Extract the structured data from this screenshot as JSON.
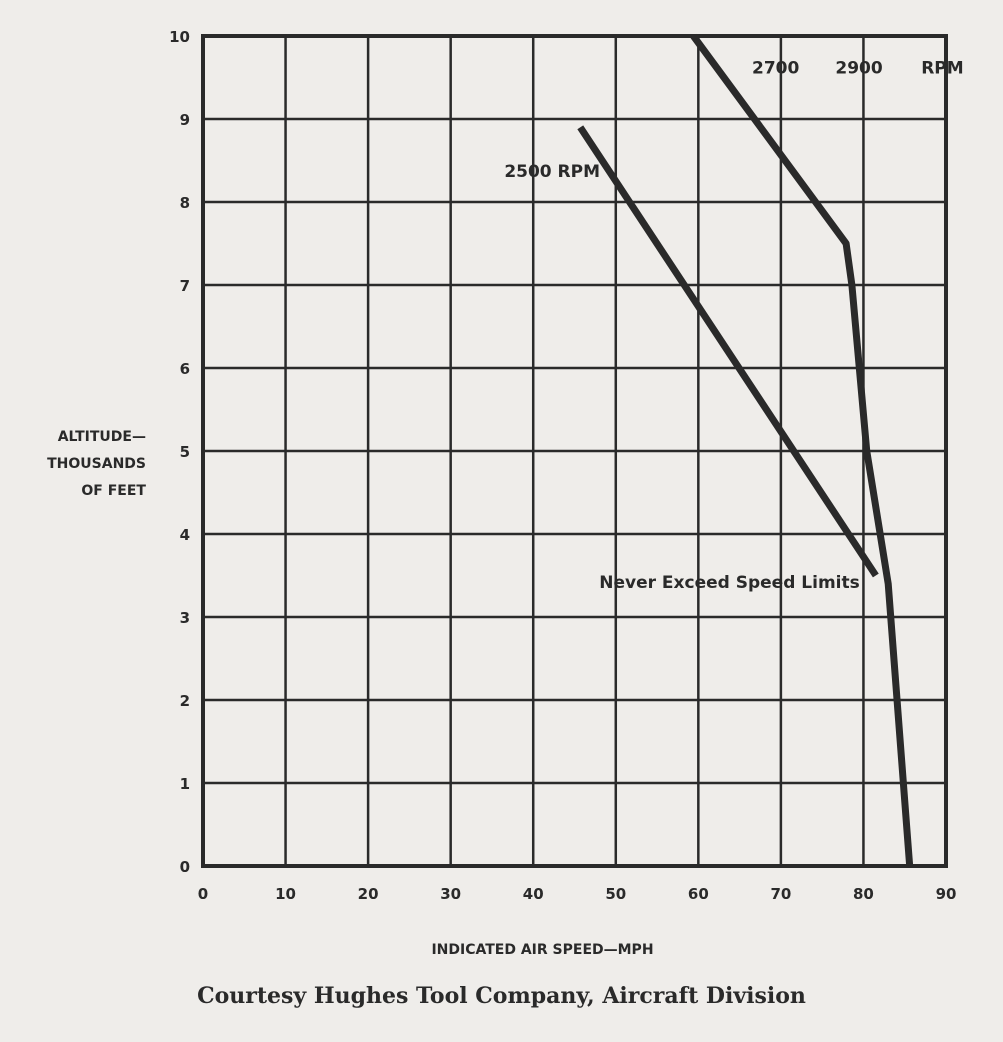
{
  "chart_data": {
    "type": "line",
    "title": "",
    "xlabel": "INDICATED AIR SPEED—MPH",
    "ylabel_lines": [
      "ALTITUDE—",
      "THOUSANDS",
      "OF FEET"
    ],
    "xlim": [
      0,
      90
    ],
    "ylim": [
      0,
      10
    ],
    "xticks": [
      "0",
      "10",
      "20",
      "30",
      "40",
      "50",
      "60",
      "70",
      "80",
      "90"
    ],
    "yticks": [
      "0",
      "1",
      "2",
      "3",
      "4",
      "5",
      "6",
      "7",
      "8",
      "9",
      "10"
    ],
    "grid": true,
    "series": [
      {
        "name": "2500 RPM",
        "x": [
          45.7,
          81.5
        ],
        "y": [
          8.9,
          3.5
        ]
      },
      {
        "name": "2700 / 2900 RPM",
        "x": [
          59.4,
          77.9,
          78.6,
          80.4,
          83.0,
          85.6
        ],
        "y": [
          10.0,
          7.5,
          7.0,
          5.0,
          3.4,
          0.0
        ]
      }
    ],
    "annotations": [
      {
        "text": "2500 RPM",
        "x": 36.5,
        "y": 8.3
      },
      {
        "text": "2700",
        "x": 66.5,
        "y": 9.55
      },
      {
        "text": "2900",
        "x": 76.6,
        "y": 9.55
      },
      {
        "text": "RPM",
        "x": 87.0,
        "y": 9.55
      },
      {
        "text": "Never Exceed Speed Limits",
        "x": 48.0,
        "y": 3.35
      }
    ]
  },
  "caption": "Courtesy Hughes Tool Company, Aircraft Division"
}
